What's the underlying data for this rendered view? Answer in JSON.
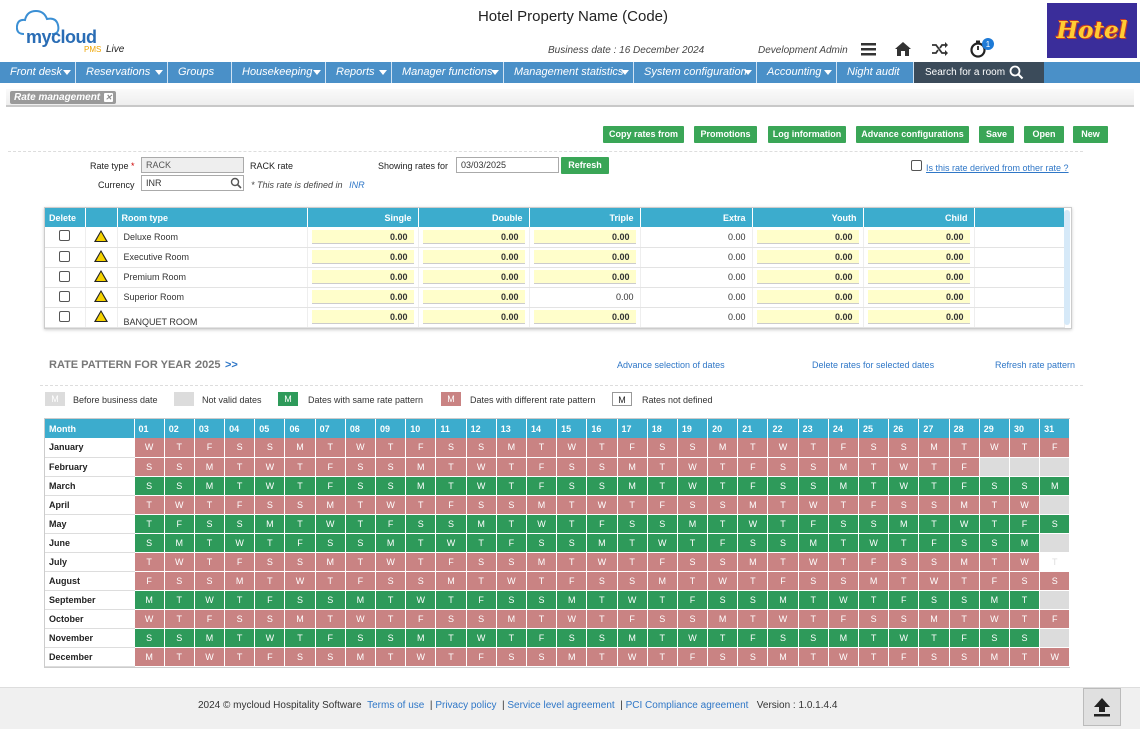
{
  "header": {
    "logo_text": "mycloud",
    "logo_pms": "PMS",
    "logo_live": "Live",
    "property": "Hotel Property Name (Code)",
    "business_date": "Business date : 16 December 2024",
    "user": "Development Admin",
    "notification_count": "1",
    "hotel_logo": "Hotel",
    "icons": [
      "menu-icon",
      "home-icon",
      "shuffle-icon",
      "timer-icon"
    ]
  },
  "nav": {
    "items": [
      {
        "label": "Front desk",
        "dropdown": true,
        "w": 76
      },
      {
        "label": "Reservations",
        "dropdown": true,
        "w": 92
      },
      {
        "label": "Groups",
        "dropdown": false,
        "w": 64
      },
      {
        "label": "Housekeeping",
        "dropdown": true,
        "w": 94
      },
      {
        "label": "Reports",
        "dropdown": true,
        "w": 66
      },
      {
        "label": "Manager functions",
        "dropdown": true,
        "w": 112
      },
      {
        "label": "Management statistics",
        "dropdown": true,
        "w": 130
      },
      {
        "label": "System configuration",
        "dropdown": true,
        "w": 123
      },
      {
        "label": "Accounting",
        "dropdown": true,
        "w": 80
      },
      {
        "label": "Night audit",
        "dropdown": false,
        "w": 77
      }
    ],
    "search_label": "Search for a room"
  },
  "breadcrumb": {
    "label": "Rate management",
    "close": "✕"
  },
  "toolbar": {
    "copy": "Copy rates from",
    "promotions": "Promotions",
    "log": "Log information",
    "advance": "Advance configurations",
    "save": "Save",
    "open": "Open",
    "new": "New"
  },
  "form": {
    "rate_type_label": "Rate type",
    "rate_type_req": "*",
    "rate_type_value": "RACK",
    "rate_type_desc": "RACK rate",
    "currency_label": "Currency",
    "currency_value": "INR",
    "currency_note": "* This rate is defined in",
    "currency_note_code": "INR",
    "showing_label": "Showing rates for",
    "showing_value": "03/03/2025",
    "refresh": "Refresh",
    "derived_label": "Is this rate derived from other rate ?"
  },
  "rates_table": {
    "headers": [
      "Delete",
      "",
      "Room type",
      "Single",
      "Double",
      "Triple",
      "Extra",
      "Youth",
      "Child"
    ],
    "rows": [
      {
        "room": "Deluxe Room",
        "single": "0.00",
        "double": "0.00",
        "triple": "0.00",
        "extra": "0.00",
        "youth": "0.00",
        "child": "0.00"
      },
      {
        "room": "Executive Room",
        "single": "0.00",
        "double": "0.00",
        "triple": "0.00",
        "extra": "0.00",
        "youth": "0.00",
        "child": "0.00"
      },
      {
        "room": "Premium Room",
        "single": "0.00",
        "double": "0.00",
        "triple": "0.00",
        "extra": "0.00",
        "youth": "0.00",
        "child": "0.00"
      },
      {
        "room": "Superior Room",
        "single": "0.00",
        "double": "0.00",
        "triple": "0.00",
        "extra": "0.00",
        "youth": "0.00",
        "child": "0.00"
      },
      {
        "room": "BANQUET ROOM",
        "single": "0.00",
        "double": "0.00",
        "triple": "0.00",
        "extra": "0.00",
        "youth": "0.00",
        "child": "0.00"
      }
    ]
  },
  "rate_pattern": {
    "title": "RATE PATTERN FOR YEAR :",
    "year": "2025",
    "next": ">>",
    "adv_sel": "Advance selection of dates",
    "delete_sel": "Delete rates for selected dates",
    "refresh_pattern": "Refresh rate pattern",
    "legend": [
      {
        "box": "M",
        "label": "Before business date",
        "cls": "n"
      },
      {
        "box": "",
        "label": "Not valid dates",
        "cls": "n"
      },
      {
        "box": "M",
        "label": "Dates with same rate pattern",
        "cls": "s"
      },
      {
        "box": "M",
        "label": "Dates with different rate pattern",
        "cls": "d"
      },
      {
        "box": "M",
        "label": "Rates not defined",
        "cls": "w"
      }
    ],
    "month_header": "Month",
    "days": [
      "01",
      "02",
      "03",
      "04",
      "05",
      "06",
      "07",
      "08",
      "09",
      "10",
      "11",
      "12",
      "13",
      "14",
      "15",
      "16",
      "17",
      "18",
      "19",
      "20",
      "21",
      "22",
      "23",
      "24",
      "25",
      "26",
      "27",
      "28",
      "29",
      "30",
      "31"
    ],
    "months": [
      {
        "name": "January",
        "start": 3,
        "len": 31,
        "type": "d"
      },
      {
        "name": "February",
        "start": 6,
        "len": 28,
        "type": "d"
      },
      {
        "name": "March",
        "start": 6,
        "len": 31,
        "type": "s"
      },
      {
        "name": "April",
        "start": 2,
        "len": 30,
        "type": "d"
      },
      {
        "name": "May",
        "start": 4,
        "len": 31,
        "type": "s"
      },
      {
        "name": "June",
        "start": 0,
        "len": 30,
        "type": "s"
      },
      {
        "name": "July",
        "start": 2,
        "len": 31,
        "type": "d",
        "last_white": true
      },
      {
        "name": "August",
        "start": 5,
        "len": 31,
        "type": "d"
      },
      {
        "name": "September",
        "start": 1,
        "len": 30,
        "type": "s"
      },
      {
        "name": "October",
        "start": 3,
        "len": 31,
        "type": "d"
      },
      {
        "name": "November",
        "start": 6,
        "len": 30,
        "type": "s"
      },
      {
        "name": "December",
        "start": 1,
        "len": 31,
        "type": "d"
      }
    ],
    "weekday_letters": [
      "S",
      "M",
      "T",
      "W",
      "T",
      "F",
      "S"
    ]
  },
  "footer": {
    "copyright": "2024 © mycloud Hospitality Software",
    "terms": "Terms of use",
    "privacy": "Privacy policy",
    "sla": "Service level agreement",
    "pci": "PCI Compliance agreement",
    "version": "Version : 1.0.1.4.4"
  }
}
